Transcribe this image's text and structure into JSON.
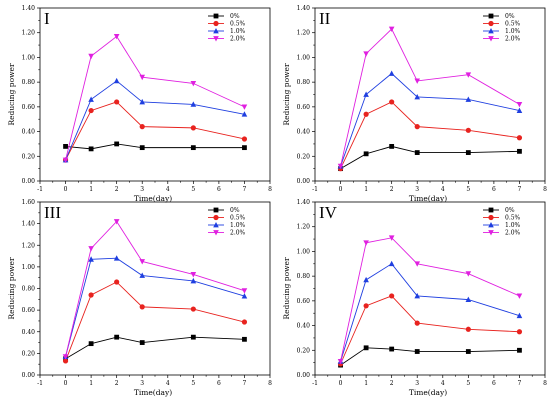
{
  "chart_data": [
    {
      "type": "line",
      "panel_label": "I",
      "xlabel": "Time(day)",
      "ylabel": "Reducing power",
      "xlim": [
        -1,
        8
      ],
      "ylim": [
        0.0,
        1.4
      ],
      "xticks": [
        "-1",
        "0",
        "1",
        "2",
        "3",
        "4",
        "5",
        "6",
        "7",
        "8"
      ],
      "yticks": [
        "0.00",
        "0.20",
        "0.40",
        "0.60",
        "0.80",
        "1.00",
        "1.20",
        "1.40"
      ],
      "legend_position": "top-right",
      "x": [
        0,
        1,
        2,
        3,
        5,
        7
      ],
      "series": [
        {
          "name": "0%",
          "color": "#000000",
          "marker": "square",
          "values": [
            0.28,
            0.26,
            0.3,
            0.27,
            0.27,
            0.27
          ]
        },
        {
          "name": "0.5%",
          "color": "#e8231f",
          "marker": "circle",
          "values": [
            0.17,
            0.57,
            0.64,
            0.44,
            0.43,
            0.34
          ]
        },
        {
          "name": "1.0%",
          "color": "#1f3fe0",
          "marker": "triangle-up",
          "values": [
            0.17,
            0.66,
            0.81,
            0.64,
            0.62,
            0.54
          ]
        },
        {
          "name": "2.0%",
          "color": "#e020e0",
          "marker": "triangle-down",
          "values": [
            0.17,
            1.01,
            1.17,
            0.84,
            0.79,
            0.6
          ]
        }
      ]
    },
    {
      "type": "line",
      "panel_label": "II",
      "xlabel": "Time(day)",
      "ylabel": "Reducing power",
      "xlim": [
        -1,
        8
      ],
      "ylim": [
        0.0,
        1.4
      ],
      "xticks": [
        "-1",
        "0",
        "1",
        "2",
        "3",
        "4",
        "5",
        "6",
        "7",
        "8"
      ],
      "yticks": [
        "0.00",
        "0.20",
        "0.40",
        "0.60",
        "0.80",
        "1.00",
        "1.20",
        "1.40"
      ],
      "legend_position": "top-right",
      "x": [
        0,
        1,
        2,
        3,
        5,
        7
      ],
      "series": [
        {
          "name": "0%",
          "color": "#000000",
          "marker": "square",
          "values": [
            0.1,
            0.22,
            0.28,
            0.23,
            0.23,
            0.24
          ]
        },
        {
          "name": "0.5%",
          "color": "#e8231f",
          "marker": "circle",
          "values": [
            0.1,
            0.54,
            0.64,
            0.44,
            0.41,
            0.35
          ]
        },
        {
          "name": "1.0%",
          "color": "#1f3fe0",
          "marker": "triangle-up",
          "values": [
            0.12,
            0.7,
            0.87,
            0.68,
            0.66,
            0.57
          ]
        },
        {
          "name": "2.0%",
          "color": "#e020e0",
          "marker": "triangle-down",
          "values": [
            0.12,
            1.03,
            1.23,
            0.81,
            0.86,
            0.62
          ]
        }
      ]
    },
    {
      "type": "line",
      "panel_label": "III",
      "xlabel": "Time(day)",
      "ylabel": "Reducing power",
      "xlim": [
        -1,
        8
      ],
      "ylim": [
        0.0,
        1.6
      ],
      "xticks": [
        "-1",
        "0",
        "1",
        "2",
        "3",
        "4",
        "5",
        "6",
        "7",
        "8"
      ],
      "yticks": [
        "0.00",
        "0.20",
        "0.40",
        "0.60",
        "0.80",
        "1.00",
        "1.20",
        "1.40",
        "1.60"
      ],
      "legend_position": "top-right",
      "x": [
        0,
        1,
        2,
        3,
        5,
        7
      ],
      "series": [
        {
          "name": "0%",
          "color": "#000000",
          "marker": "square",
          "values": [
            0.15,
            0.29,
            0.35,
            0.3,
            0.35,
            0.33
          ]
        },
        {
          "name": "0.5%",
          "color": "#e8231f",
          "marker": "circle",
          "values": [
            0.13,
            0.74,
            0.86,
            0.63,
            0.61,
            0.49
          ]
        },
        {
          "name": "1.0%",
          "color": "#1f3fe0",
          "marker": "triangle-up",
          "values": [
            0.17,
            1.07,
            1.08,
            0.92,
            0.87,
            0.73
          ]
        },
        {
          "name": "2.0%",
          "color": "#e020e0",
          "marker": "triangle-down",
          "values": [
            0.17,
            1.17,
            1.42,
            1.05,
            0.93,
            0.78
          ]
        }
      ]
    },
    {
      "type": "line",
      "panel_label": "IV",
      "xlabel": "Time(day)",
      "ylabel": "Reducing power",
      "xlim": [
        -1,
        8
      ],
      "ylim": [
        0.0,
        1.4
      ],
      "xticks": [
        "-1",
        "0",
        "1",
        "2",
        "3",
        "4",
        "5",
        "6",
        "7",
        "8"
      ],
      "yticks": [
        "0.00",
        "0.20",
        "0.40",
        "0.60",
        "0.80",
        "1.00",
        "1.20",
        "1.40"
      ],
      "legend_position": "top-right",
      "x": [
        0,
        1,
        2,
        3,
        5,
        7
      ],
      "series": [
        {
          "name": "0%",
          "color": "#000000",
          "marker": "square",
          "values": [
            0.08,
            0.22,
            0.21,
            0.19,
            0.19,
            0.2
          ]
        },
        {
          "name": "0.5%",
          "color": "#e8231f",
          "marker": "circle",
          "values": [
            0.09,
            0.56,
            0.64,
            0.42,
            0.37,
            0.35
          ]
        },
        {
          "name": "1.0%",
          "color": "#1f3fe0",
          "marker": "triangle-up",
          "values": [
            0.11,
            0.77,
            0.9,
            0.64,
            0.61,
            0.48
          ]
        },
        {
          "name": "2.0%",
          "color": "#e020e0",
          "marker": "triangle-down",
          "values": [
            0.11,
            1.07,
            1.11,
            0.9,
            0.82,
            0.64
          ]
        }
      ]
    }
  ]
}
